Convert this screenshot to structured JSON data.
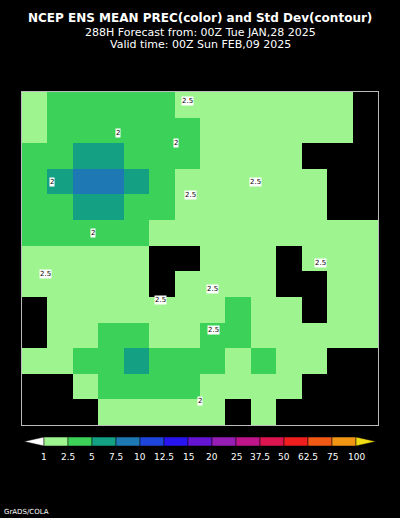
{
  "chart_data": {
    "type": "heatmap",
    "title_lines": [
      "NCEP ENS MEAN PREC(color) and Std Dev(contour)",
      "288H Forecast from: 00Z Tue JAN,28 2025",
      "Valid time: 00Z Sun FEB,09 2025"
    ],
    "x": [
      0,
      1,
      2,
      3,
      4,
      5,
      6,
      7,
      8,
      9,
      10,
      11,
      12,
      13
    ],
    "y": [
      12,
      11,
      10,
      9,
      8,
      7,
      6,
      5,
      4,
      3,
      2,
      1,
      0
    ],
    "z": [
      [
        1.5,
        3,
        3,
        3,
        3,
        3,
        1.5,
        1.5,
        1.5,
        1.5,
        1.5,
        1.5,
        1.5,
        0.5
      ],
      [
        1.5,
        3,
        3,
        3,
        3,
        3,
        3,
        1.5,
        1.5,
        1.5,
        1.5,
        1.5,
        1.5,
        0.5
      ],
      [
        3,
        3,
        6,
        6,
        3,
        3,
        3,
        1.5,
        1.5,
        1.5,
        1.5,
        0.5,
        0.5,
        0.5
      ],
      [
        3,
        6,
        8,
        8,
        6,
        3,
        1.5,
        1.5,
        1.5,
        1.5,
        1.5,
        1.5,
        0.5,
        0.5
      ],
      [
        3,
        3,
        6,
        6,
        3,
        3,
        1.5,
        1.5,
        1.5,
        1.5,
        1.5,
        1.5,
        0.5,
        0.5
      ],
      [
        3,
        3,
        3,
        3,
        3,
        1.5,
        1.5,
        1.5,
        1.5,
        1.5,
        1.5,
        1.5,
        1.5,
        1.5
      ],
      [
        1.5,
        1.5,
        1.5,
        1.5,
        1.5,
        0.5,
        0.5,
        1.5,
        1.5,
        1.5,
        0.5,
        1.5,
        1.5,
        1.5
      ],
      [
        1.5,
        1.5,
        1.5,
        1.5,
        1.5,
        0.5,
        1.5,
        1.5,
        1.5,
        1.5,
        0.5,
        0.5,
        1.5,
        1.5
      ],
      [
        0.5,
        1.5,
        1.5,
        1.5,
        1.5,
        1.5,
        1.5,
        1.5,
        3,
        1.5,
        1.5,
        0.5,
        1.5,
        1.5
      ],
      [
        0.5,
        1.5,
        1.5,
        3,
        3,
        1.5,
        1.5,
        3,
        3,
        1.5,
        1.5,
        1.5,
        1.5,
        1.5
      ],
      [
        1.5,
        1.5,
        3,
        3,
        6,
        3,
        3,
        3,
        1.5,
        3,
        1.5,
        1.5,
        0.5,
        0.5
      ],
      [
        0.5,
        0.5,
        1.5,
        3,
        3,
        3,
        3,
        1.5,
        1.5,
        1.5,
        1.5,
        0.5,
        0.5,
        0.5
      ],
      [
        0.5,
        0.5,
        0.5,
        1.5,
        1.5,
        1.5,
        1.5,
        1.5,
        0.5,
        1.5,
        0.5,
        0.5,
        0.5,
        0.5
      ]
    ],
    "zlim": [
      0,
      100
    ],
    "xlim": [
      -0.5,
      13.5
    ],
    "ylim": [
      -0.5,
      12.5
    ],
    "tick_labels": false,
    "colorbar": {
      "levels": [
        1,
        2.5,
        5,
        7.5,
        10,
        12.5,
        15,
        20,
        25,
        37.5,
        50,
        62.5,
        75,
        100
      ],
      "colors": [
        "#ffffff",
        "#9ef58f",
        "#3cd25a",
        "#14a082",
        "#1e78b4",
        "#1e46dc",
        "#2814f0",
        "#6414d2",
        "#961eb4",
        "#be148c",
        "#dc1450",
        "#f01e1e",
        "#f05a14",
        "#f09614",
        "#f0dc14"
      ]
    },
    "contour_labels": [
      {
        "x": 6.0,
        "y": 12.15,
        "value": 2.5
      },
      {
        "x": 3.28,
        "y": 10.9,
        "value": 2
      },
      {
        "x": 5.56,
        "y": 10.5,
        "value": 2
      },
      {
        "x": 0.68,
        "y": 8.98,
        "value": 2
      },
      {
        "x": 2.3,
        "y": 7.0,
        "value": 2
      },
      {
        "x": 6.11,
        "y": 8.48,
        "value": 2.5
      },
      {
        "x": 8.67,
        "y": 8.98,
        "value": 2.5
      },
      {
        "x": 0.41,
        "y": 5.4,
        "value": 2.5
      },
      {
        "x": 11.23,
        "y": 5.82,
        "value": 2.5
      },
      {
        "x": 4.93,
        "y": 4.37,
        "value": 2.5
      },
      {
        "x": 6.98,
        "y": 4.8,
        "value": 2.5
      },
      {
        "x": 7.02,
        "y": 3.2,
        "value": 2.5
      },
      {
        "x": 6.5,
        "y": 0.43,
        "value": 2
      }
    ],
    "footer": "GrADS/COLA"
  }
}
